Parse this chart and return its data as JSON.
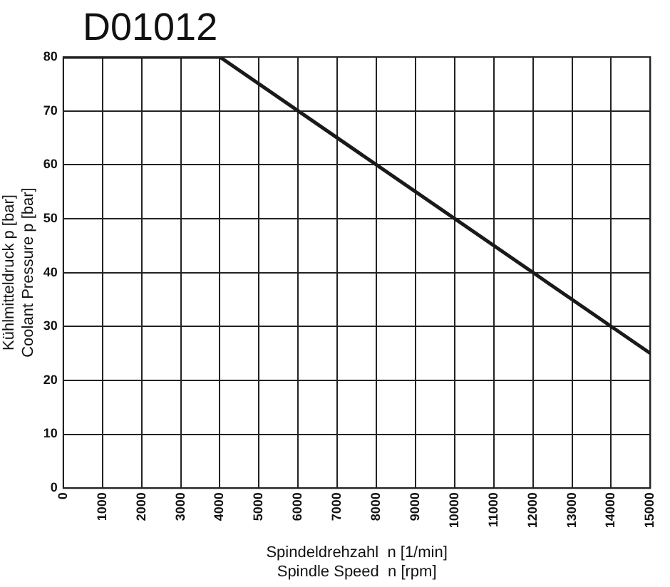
{
  "chart_data": {
    "type": "line",
    "title": "D01012",
    "xlabel": "Spindeldrehzahl  n [1/min]\nSpindle Speed  n [rpm]",
    "ylabel": "Kühlmitteldruck p [bar]\nCoolant Pressure p [bar]",
    "x": [
      0,
      4000,
      15000
    ],
    "series": [
      {
        "color": "#1a1a1a",
        "values": [
          80,
          80,
          25
        ]
      }
    ],
    "xlim": [
      0,
      15000
    ],
    "xticks": [
      0,
      1000,
      2000,
      3000,
      4000,
      5000,
      6000,
      7000,
      8000,
      9000,
      10000,
      11000,
      12000,
      13000,
      14000,
      15000
    ],
    "ylim": [
      0,
      80
    ],
    "yticks": [
      0,
      10,
      20,
      30,
      40,
      50,
      60,
      70,
      80
    ],
    "grid": true,
    "legend": false,
    "marker": "none",
    "line_style": "solid"
  }
}
